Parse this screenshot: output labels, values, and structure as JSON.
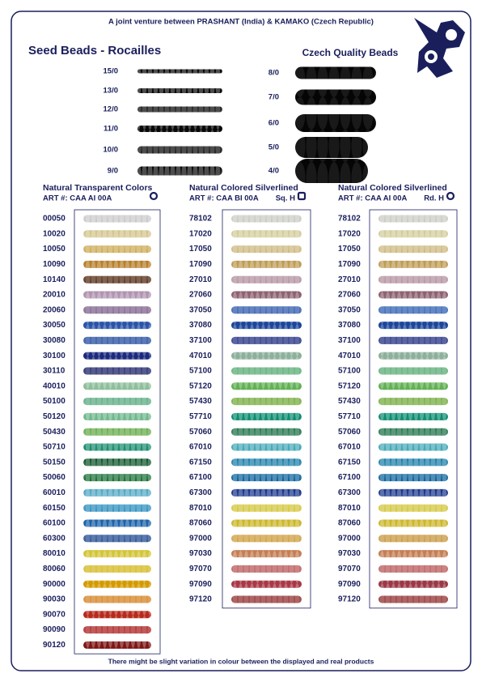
{
  "header": {
    "tagline": "A joint venture between PRASHANT (India) & KAMAKO (Czech Republic)"
  },
  "seed_beads": {
    "title": "Seed Beads - Rocailles",
    "sizes": [
      "15/0",
      "13/0",
      "12/0",
      "11/0",
      "10/0",
      "9/0"
    ]
  },
  "czech_beads": {
    "title": "Czech Quality Beads",
    "sizes": [
      "8/0",
      "7/0",
      "6/0",
      "5/0",
      "4/0"
    ]
  },
  "columns": [
    {
      "title": "Natural Transparent Colors",
      "art": "ART #: CAA AI 00A",
      "rows": [
        {
          "code": "00050",
          "color": "#e6e6e6"
        },
        {
          "code": "10020",
          "color": "#f0e0a0"
        },
        {
          "code": "10050",
          "color": "#e8c060"
        },
        {
          "code": "10090",
          "color": "#d09030"
        },
        {
          "code": "10140",
          "color": "#5a2a10"
        },
        {
          "code": "20010",
          "color": "#c8a8c8"
        },
        {
          "code": "20060",
          "color": "#8a6a9a"
        },
        {
          "code": "30050",
          "color": "#3060c0"
        },
        {
          "code": "30080",
          "color": "#2050b0"
        },
        {
          "code": "30100",
          "color": "#203090"
        },
        {
          "code": "30110",
          "color": "#182070"
        },
        {
          "code": "40010",
          "color": "#a0d8b0"
        },
        {
          "code": "50100",
          "color": "#60c090"
        },
        {
          "code": "50120",
          "color": "#80d0a0"
        },
        {
          "code": "50430",
          "color": "#70c050"
        },
        {
          "code": "50710",
          "color": "#20a080"
        },
        {
          "code": "50150",
          "color": "#106030"
        },
        {
          "code": "50060",
          "color": "#208040"
        },
        {
          "code": "60010",
          "color": "#60c0e0"
        },
        {
          "code": "60150",
          "color": "#30a0d8"
        },
        {
          "code": "60100",
          "color": "#2070c0"
        },
        {
          "code": "60300",
          "color": "#2050a0"
        },
        {
          "code": "80010",
          "color": "#f0e040"
        },
        {
          "code": "80060",
          "color": "#f0d020"
        },
        {
          "code": "90000",
          "color": "#f0b000"
        },
        {
          "code": "90030",
          "color": "#f09020"
        },
        {
          "code": "90070",
          "color": "#d03020"
        },
        {
          "code": "90090",
          "color": "#c02020"
        },
        {
          "code": "90120",
          "color": "#901818"
        }
      ]
    },
    {
      "title": "Natural Colored Silverlined",
      "art": "ART #: CAA BI 00A",
      "hole": "Sq. H",
      "rows": [
        {
          "code": "78102",
          "color": "#e8e8e0"
        },
        {
          "code": "17020",
          "color": "#f0e8b0"
        },
        {
          "code": "17050",
          "color": "#e8d090"
        },
        {
          "code": "17090",
          "color": "#d8b060"
        },
        {
          "code": "27010",
          "color": "#c8a0b0"
        },
        {
          "code": "27060",
          "color": "#a07080"
        },
        {
          "code": "37050",
          "color": "#3060c0"
        },
        {
          "code": "37080",
          "color": "#2050b0"
        },
        {
          "code": "37100",
          "color": "#203090"
        },
        {
          "code": "47010",
          "color": "#a0c8b0"
        },
        {
          "code": "57100",
          "color": "#60c080"
        },
        {
          "code": "57120",
          "color": "#70c860"
        },
        {
          "code": "57430",
          "color": "#80c040"
        },
        {
          "code": "57710",
          "color": "#10a080"
        },
        {
          "code": "57060",
          "color": "#208050"
        },
        {
          "code": "67010",
          "color": "#50c0d0"
        },
        {
          "code": "67150",
          "color": "#2090c0"
        },
        {
          "code": "67100",
          "color": "#1070b0"
        },
        {
          "code": "67300",
          "color": "#2040a0"
        },
        {
          "code": "87010",
          "color": "#f0e040"
        },
        {
          "code": "87060",
          "color": "#e8d030"
        },
        {
          "code": "97000",
          "color": "#e8b040"
        },
        {
          "code": "97030",
          "color": "#e09060"
        },
        {
          "code": "97070",
          "color": "#d06060"
        },
        {
          "code": "97090",
          "color": "#c04050"
        },
        {
          "code": "97120",
          "color": "#a03030"
        }
      ]
    },
    {
      "title": "Natural Colored Silverlined",
      "art": "ART #: CAA AI 00A",
      "hole": "Rd. H",
      "rows": [
        {
          "code": "78102",
          "color": "#e8e8e0"
        },
        {
          "code": "17020",
          "color": "#f0e8b0"
        },
        {
          "code": "17050",
          "color": "#e8d090"
        },
        {
          "code": "17090",
          "color": "#d8b060"
        },
        {
          "code": "27010",
          "color": "#c8a0b0"
        },
        {
          "code": "27060",
          "color": "#a07080"
        },
        {
          "code": "37050",
          "color": "#3068c8"
        },
        {
          "code": "37080",
          "color": "#2050b0"
        },
        {
          "code": "37100",
          "color": "#203090"
        },
        {
          "code": "47010",
          "color": "#a0c8b0"
        },
        {
          "code": "57100",
          "color": "#60c080"
        },
        {
          "code": "57120",
          "color": "#70c860"
        },
        {
          "code": "57430",
          "color": "#80c040"
        },
        {
          "code": "57710",
          "color": "#10a080"
        },
        {
          "code": "57060",
          "color": "#208050"
        },
        {
          "code": "67010",
          "color": "#50c0d0"
        },
        {
          "code": "67150",
          "color": "#2090c0"
        },
        {
          "code": "67100",
          "color": "#1070b0"
        },
        {
          "code": "67300",
          "color": "#2040a0"
        },
        {
          "code": "87010",
          "color": "#f0e040"
        },
        {
          "code": "87060",
          "color": "#e8d030"
        },
        {
          "code": "97000",
          "color": "#e0a840"
        },
        {
          "code": "97030",
          "color": "#e09060"
        },
        {
          "code": "97070",
          "color": "#d06060"
        },
        {
          "code": "97090",
          "color": "#b04050"
        },
        {
          "code": "97120",
          "color": "#a03030"
        }
      ]
    }
  ],
  "footer": "There might be slight variation in colour between the displayed and real products"
}
